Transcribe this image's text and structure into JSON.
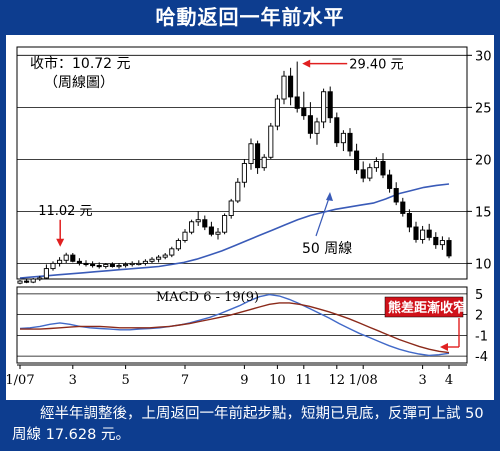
{
  "header": {
    "title": "哈動返回一年前水平"
  },
  "caption": "經半年調整後，上周返回一年前起步點，短期已見底，反彈可上試 50 周線 17.628 元。",
  "colors": {
    "frame": "#0d3d8f",
    "ma_line": "#3a5bb8",
    "dif_line": "#4169c8",
    "dea_line": "#8b2a1a",
    "arrow": "#e02020",
    "label_box": "#d0121a"
  },
  "chart_data": [
    {
      "type": "candlestick",
      "title": "",
      "notes": [
        "收市：10.72 元",
        "（周線圖）"
      ],
      "y_ticks": [
        10,
        15,
        20,
        25,
        30
      ],
      "ylim": [
        8.5,
        30.8
      ],
      "x_labels": [
        "1/07",
        "3",
        "5",
        "7",
        "9",
        "10",
        "11",
        "12",
        "1/08",
        "3",
        "4"
      ],
      "x_label_weeks": [
        0,
        8,
        16,
        25,
        34,
        39,
        43,
        48,
        52,
        61,
        65
      ],
      "annotations": [
        {
          "text": "29.40 元",
          "week": 42,
          "value": 29.4
        },
        {
          "text": "11.02 元",
          "week": 7,
          "value": 11.02
        },
        {
          "text": "50 周線",
          "series": "ma50"
        }
      ],
      "candles": [
        [
          8.1,
          8.4,
          8.0,
          8.3
        ],
        [
          8.3,
          8.5,
          8.1,
          8.2
        ],
        [
          8.2,
          8.6,
          8.1,
          8.5
        ],
        [
          8.5,
          8.8,
          8.3,
          8.6
        ],
        [
          8.6,
          9.9,
          8.5,
          9.5
        ],
        [
          9.5,
          10.2,
          9.3,
          10.0
        ],
        [
          10.0,
          10.6,
          9.7,
          10.3
        ],
        [
          10.3,
          11.02,
          10.0,
          10.8
        ],
        [
          10.8,
          11.0,
          10.1,
          10.2
        ],
        [
          10.2,
          10.5,
          9.8,
          10.0
        ],
        [
          10.0,
          10.3,
          9.7,
          9.9
        ],
        [
          9.9,
          10.2,
          9.6,
          9.8
        ],
        [
          9.8,
          10.1,
          9.5,
          9.7
        ],
        [
          9.7,
          10.0,
          9.5,
          9.9
        ],
        [
          9.9,
          10.1,
          9.6,
          9.7
        ],
        [
          9.7,
          10.0,
          9.5,
          9.8
        ],
        [
          9.8,
          10.1,
          9.6,
          9.9
        ],
        [
          9.9,
          10.2,
          9.7,
          10.0
        ],
        [
          10.0,
          10.3,
          9.8,
          10.0
        ],
        [
          10.0,
          10.4,
          9.8,
          10.2
        ],
        [
          10.2,
          10.6,
          10.0,
          10.4
        ],
        [
          10.4,
          10.8,
          10.1,
          10.6
        ],
        [
          10.6,
          11.0,
          10.4,
          10.8
        ],
        [
          10.8,
          11.6,
          10.6,
          11.4
        ],
        [
          11.4,
          12.4,
          11.2,
          12.2
        ],
        [
          12.2,
          13.3,
          12.0,
          13.0
        ],
        [
          13.0,
          14.2,
          12.8,
          14.0
        ],
        [
          14.0,
          15.0,
          13.6,
          14.2
        ],
        [
          14.2,
          14.6,
          13.2,
          13.5
        ],
        [
          13.5,
          14.0,
          12.6,
          12.8
        ],
        [
          12.8,
          13.4,
          12.3,
          13.0
        ],
        [
          13.0,
          14.8,
          12.8,
          14.6
        ],
        [
          14.6,
          16.2,
          14.3,
          16.0
        ],
        [
          16.0,
          18.2,
          15.8,
          17.8
        ],
        [
          17.8,
          20.0,
          17.3,
          19.6
        ],
        [
          19.6,
          22.0,
          19.0,
          21.5
        ],
        [
          21.5,
          21.8,
          18.6,
          19.2
        ],
        [
          19.2,
          20.5,
          18.9,
          20.2
        ],
        [
          20.2,
          23.5,
          20.0,
          23.2
        ],
        [
          23.2,
          26.2,
          22.8,
          25.8
        ],
        [
          25.8,
          28.5,
          25.3,
          28.0
        ],
        [
          28.0,
          28.8,
          25.2,
          26.0
        ],
        [
          26.0,
          29.4,
          24.5,
          24.9
        ],
        [
          24.9,
          26.5,
          23.8,
          24.2
        ],
        [
          24.2,
          25.5,
          22.0,
          22.5
        ],
        [
          22.5,
          24.0,
          21.4,
          23.6
        ],
        [
          23.6,
          26.8,
          23.0,
          26.5
        ],
        [
          26.5,
          27.0,
          23.5,
          24.0
        ],
        [
          24.0,
          24.5,
          21.2,
          21.6
        ],
        [
          21.6,
          22.8,
          20.8,
          22.5
        ],
        [
          22.5,
          23.0,
          20.3,
          20.8
        ],
        [
          20.8,
          21.5,
          18.6,
          19.0
        ],
        [
          19.0,
          19.8,
          17.8,
          18.2
        ],
        [
          18.2,
          19.6,
          17.9,
          19.2
        ],
        [
          19.2,
          20.2,
          18.8,
          19.8
        ],
        [
          19.8,
          20.6,
          18.2,
          18.5
        ],
        [
          18.5,
          19.0,
          16.8,
          17.2
        ],
        [
          17.2,
          17.8,
          15.6,
          15.9
        ],
        [
          15.9,
          16.3,
          14.5,
          14.8
        ],
        [
          14.8,
          15.2,
          13.0,
          13.5
        ],
        [
          13.5,
          14.0,
          12.0,
          12.3
        ],
        [
          12.3,
          13.6,
          11.9,
          13.2
        ],
        [
          13.2,
          13.8,
          12.2,
          12.5
        ],
        [
          12.5,
          13.0,
          11.4,
          11.8
        ],
        [
          11.8,
          12.6,
          11.3,
          12.2
        ],
        [
          12.2,
          12.5,
          10.5,
          10.72
        ]
      ],
      "ma50": [
        8.6,
        8.7,
        8.8,
        8.9,
        9.0,
        9.1,
        9.2,
        9.3,
        9.4,
        9.5,
        9.6,
        9.7,
        9.9,
        10.1,
        10.4,
        10.8,
        11.2,
        11.7,
        12.2,
        12.7,
        13.2,
        13.7,
        14.2,
        14.6,
        14.9,
        15.2,
        15.4,
        15.6,
        15.8,
        16.2,
        16.7,
        17.0,
        17.3,
        17.5,
        17.628
      ]
    },
    {
      "type": "line",
      "title": "MACD 6 - 19(9)",
      "y_ticks": [
        5,
        2,
        -1,
        -4
      ],
      "ylim": [
        -5,
        6
      ],
      "callout": "熊差距漸收窄",
      "series": [
        {
          "values": [
            0.0,
            0.1,
            0.3,
            0.6,
            0.8,
            0.6,
            0.3,
            0.1,
            0.0,
            -0.1,
            -0.2,
            -0.2,
            -0.1,
            0.0,
            0.1,
            0.3,
            0.5,
            0.8,
            1.2,
            1.6,
            2.1,
            2.7,
            3.3,
            4.0,
            4.6,
            4.9,
            4.7,
            4.2,
            3.6,
            2.9,
            2.2,
            1.5,
            0.7,
            0.0,
            -0.7,
            -1.3,
            -1.9,
            -2.5,
            -3.0,
            -3.4,
            -3.7,
            -3.9,
            -3.8,
            -3.6
          ]
        },
        {
          "values": [
            -0.1,
            -0.1,
            -0.1,
            0.0,
            0.1,
            0.2,
            0.3,
            0.3,
            0.3,
            0.2,
            0.1,
            0.1,
            0.1,
            0.1,
            0.2,
            0.3,
            0.5,
            0.7,
            1.0,
            1.3,
            1.6,
            1.9,
            2.3,
            2.7,
            3.1,
            3.5,
            3.7,
            3.7,
            3.5,
            3.2,
            2.8,
            2.4,
            1.9,
            1.4,
            0.8,
            0.2,
            -0.4,
            -1.0,
            -1.6,
            -2.1,
            -2.6,
            -3.0,
            -3.3,
            -3.5
          ]
        }
      ]
    }
  ]
}
